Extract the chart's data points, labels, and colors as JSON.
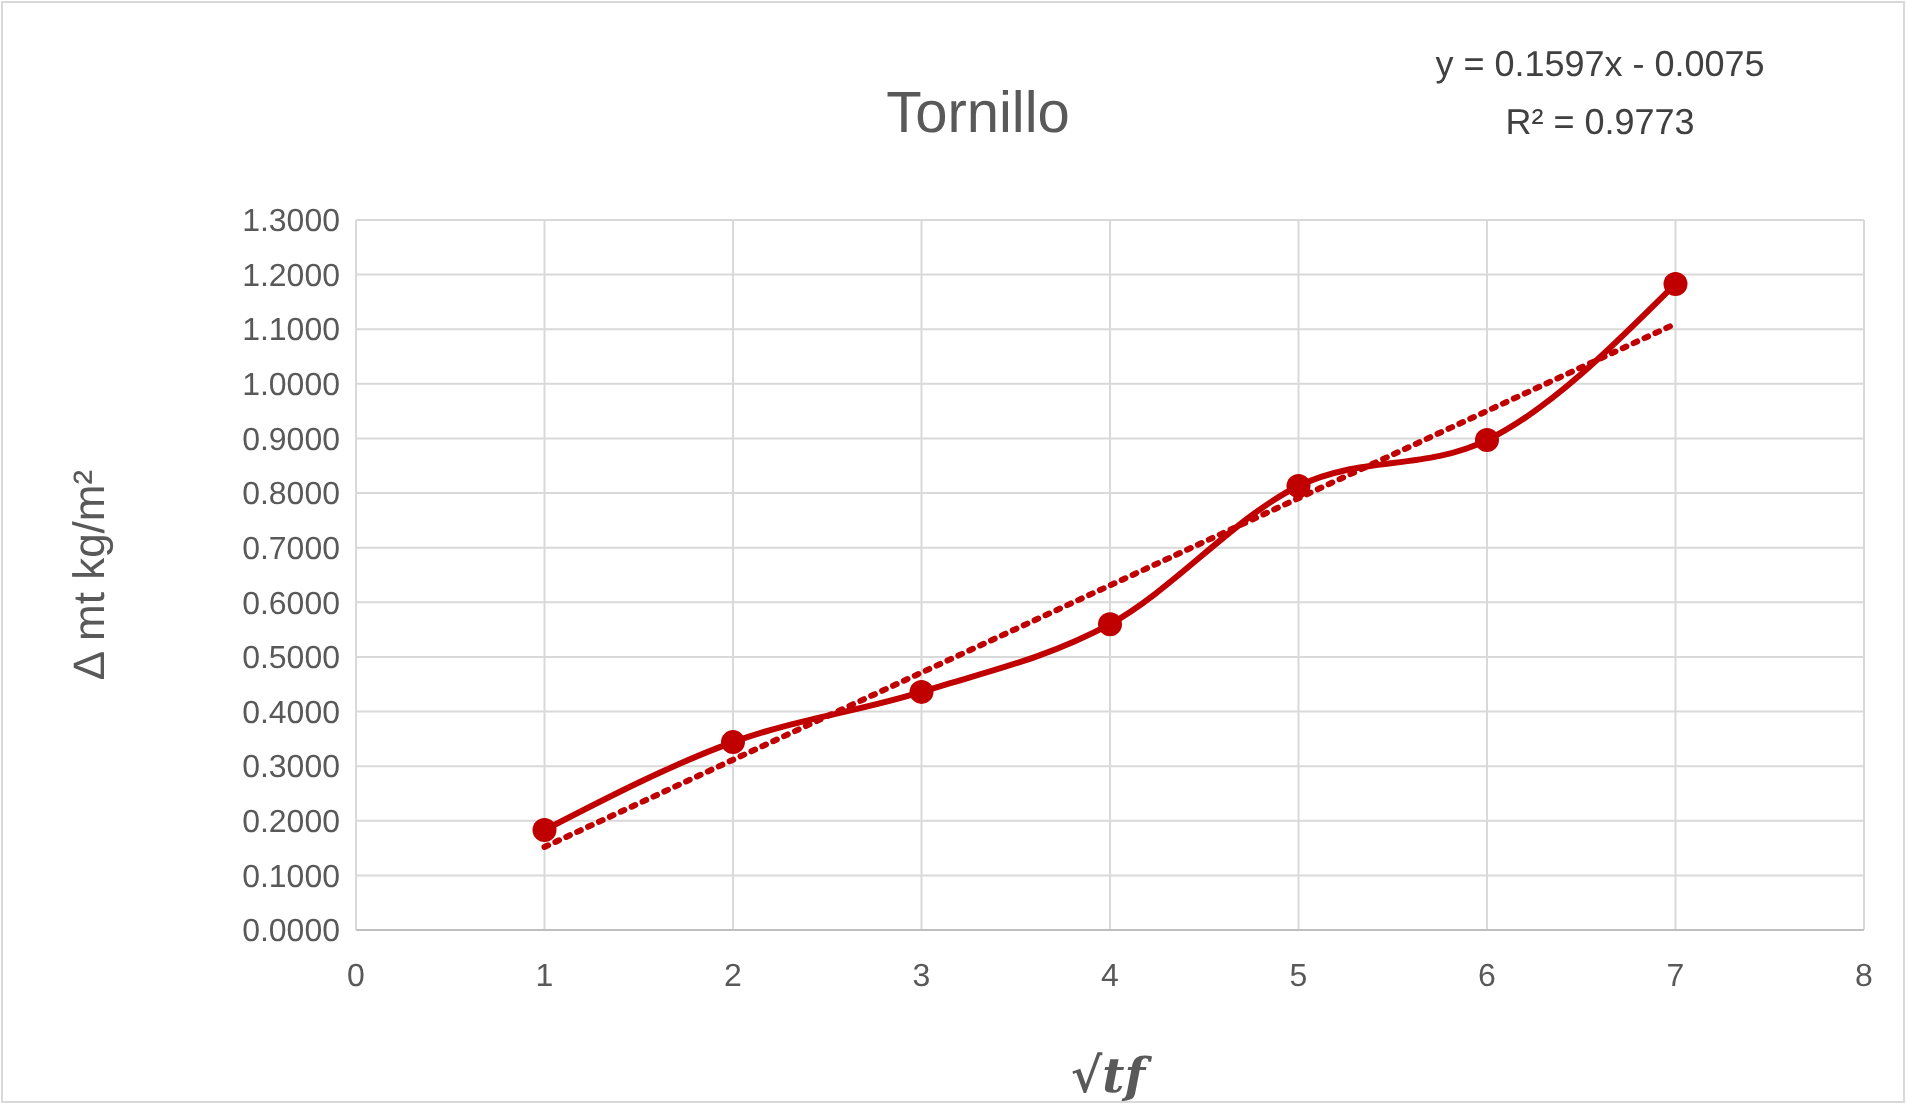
{
  "chart_data": {
    "type": "line",
    "title": "Tornillo",
    "xlabel": "√tf",
    "ylabel": "Δ mt  kg/m²",
    "annotations": [
      "y = 0.1597x - 0.0075",
      "R² = 0.9773"
    ],
    "x": [
      1,
      2,
      3,
      4,
      5,
      6,
      7
    ],
    "series": [
      {
        "color": "#c00000",
        "values": [
          0.183,
          0.344,
          0.436,
          0.56,
          0.813,
          0.897,
          1.183
        ],
        "marker": "circle",
        "line_style": "solid"
      },
      {
        "type": "line",
        "color": "#c00000",
        "x": [
          1,
          7
        ],
        "values": [
          0.152,
          1.11
        ],
        "marker": "none",
        "line_style": "dotted"
      }
    ],
    "xlim": [
      0,
      8
    ],
    "xticks": [
      0,
      1,
      2,
      3,
      4,
      5,
      6,
      7,
      8
    ],
    "ylim": [
      0,
      1.3
    ],
    "yticks": [
      {
        "value": 0,
        "label": "0.0000"
      },
      {
        "value": 0.1,
        "label": "0.1000"
      },
      {
        "value": 0.2,
        "label": "0.2000"
      },
      {
        "value": 0.3,
        "label": "0.3000"
      },
      {
        "value": 0.4,
        "label": "0.4000"
      },
      {
        "value": 0.5,
        "label": "0.5000"
      },
      {
        "value": 0.6,
        "label": "0.6000"
      },
      {
        "value": 0.7,
        "label": "0.7000"
      },
      {
        "value": 0.8,
        "label": "0.8000"
      },
      {
        "value": 0.9,
        "label": "0.9000"
      },
      {
        "value": 1.0,
        "label": "1.0000"
      },
      {
        "value": 1.1,
        "label": "1.1000"
      },
      {
        "value": 1.2,
        "label": "1.2000"
      },
      {
        "value": 1.3,
        "label": "1.3000"
      }
    ],
    "grid": true
  }
}
